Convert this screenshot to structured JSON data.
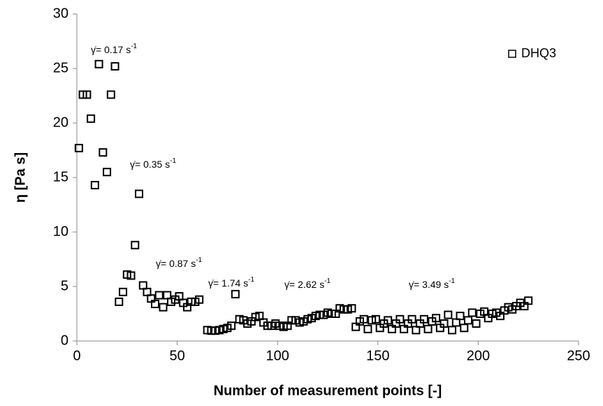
{
  "chart_data": {
    "type": "scatter",
    "xlabel": "Number of measurement points [-]",
    "ylabel": "η [Pa s]",
    "xlim": [
      0,
      250
    ],
    "xticks": [
      0,
      50,
      100,
      150,
      200,
      250
    ],
    "ylim": [
      0,
      30
    ],
    "yticks": [
      0,
      5,
      10,
      15,
      20,
      25,
      30
    ],
    "grid": false,
    "legend": "upper right",
    "series": [
      {
        "name": "DHQ3",
        "color": "#000000",
        "x": [
          1,
          3,
          5,
          7,
          9,
          11,
          13,
          15,
          17,
          19,
          21,
          23,
          25,
          27,
          29,
          31,
          33,
          35,
          37,
          39,
          41,
          43,
          45,
          47,
          49,
          51,
          53,
          55,
          57,
          59,
          61,
          65,
          67,
          69,
          71,
          73,
          75,
          77,
          79,
          81,
          83,
          85,
          87,
          89,
          91,
          93,
          95,
          97,
          99,
          101,
          103,
          105,
          107,
          109,
          111,
          113,
          115,
          117,
          119,
          121,
          123,
          125,
          127,
          129,
          131,
          133,
          135,
          137,
          139,
          141,
          143,
          145,
          147,
          149,
          151,
          153,
          155,
          157,
          159,
          161,
          163,
          165,
          167,
          169,
          171,
          173,
          175,
          177,
          179,
          181,
          183,
          185,
          187,
          189,
          191,
          193,
          195,
          197,
          199,
          201,
          203,
          205,
          207,
          209,
          211,
          213,
          215,
          217,
          219,
          221,
          223,
          225
        ],
        "values": [
          17.7,
          22.6,
          22.6,
          20.4,
          14.3,
          25.4,
          17.3,
          15.5,
          22.6,
          25.2,
          3.6,
          4.5,
          6.1,
          6.0,
          8.8,
          13.5,
          5.1,
          4.5,
          3.9,
          3.4,
          4.2,
          3.1,
          4.2,
          3.6,
          3.8,
          4.1,
          3.5,
          3.1,
          3.6,
          3.6,
          3.8,
          1.0,
          0.95,
          0.95,
          1.0,
          1.1,
          1.2,
          1.4,
          4.3,
          2.0,
          1.9,
          1.6,
          1.8,
          2.2,
          2.3,
          1.7,
          1.4,
          1.4,
          1.6,
          1.4,
          1.3,
          1.4,
          1.9,
          1.9,
          1.7,
          1.8,
          2.0,
          2.1,
          2.3,
          2.4,
          2.4,
          2.6,
          2.5,
          2.5,
          3.0,
          2.9,
          2.9,
          3.0,
          1.3,
          1.8,
          2.0,
          1.1,
          1.9,
          2.0,
          1.2,
          1.6,
          1.9,
          1.1,
          1.6,
          2.0,
          1.1,
          1.6,
          2.0,
          1.0,
          1.6,
          2.0,
          1.1,
          1.8,
          2.1,
          1.2,
          1.6,
          2.4,
          1.0,
          1.7,
          2.3,
          1.2,
          1.9,
          2.6,
          1.6,
          2.5,
          2.7,
          2.1,
          2.5,
          2.6,
          2.3,
          2.8,
          3.1,
          2.9,
          3.2,
          3.5,
          3.2,
          3.7
        ]
      }
    ],
    "annotations": [
      {
        "text": "γ̇= 0.17 s",
        "superscript": "-1"
      },
      {
        "text": "γ̇= 0.35 s",
        "superscript": "-1"
      },
      {
        "text": "γ̇= 0.87 s",
        "superscript": "-1"
      },
      {
        "text": "γ̇= 1.74 s",
        "superscript": "-1"
      },
      {
        "text": "γ̇= 2.62 s",
        "superscript": "-1"
      },
      {
        "text": "γ̇= 3.49 s",
        "superscript": "-1"
      }
    ]
  }
}
